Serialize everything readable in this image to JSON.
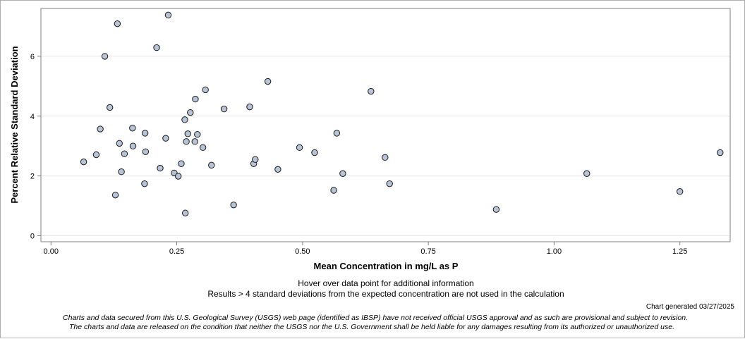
{
  "notes": {
    "hover": "Hover over data point for additional information",
    "calc": "Results > 4 standard deviations from the expected concentration are not used in the calculation",
    "generated": "Chart generated 03/27/2025",
    "disclaimer_1": "Charts and data secured from this U.S. Geological Survey (USGS) web page (identified as IBSP) have not received official USGS approval and as such are provisional and subject to revision.",
    "disclaimer_2": "The charts and data are released on the condition that neither the USGS nor the U.S. Government shall be held liable for any damages resulting from its authorized or unauthorized use."
  },
  "colors": {
    "marker_fill": "#b7c4d6",
    "marker_stroke": "#1a1a1a",
    "grid": "#e6e6e6",
    "axis": "#7f7f7f"
  },
  "chart_data": {
    "type": "scatter",
    "title": "",
    "xlabel": "Mean Concentration in mg/L as P",
    "ylabel": "Percent Relative Standard Deviation",
    "xlim": [
      -0.02,
      1.35
    ],
    "ylim": [
      -0.2,
      7.6
    ],
    "xticks": [
      0.0,
      0.25,
      0.5,
      0.75,
      1.0,
      1.25
    ],
    "xtick_labels": [
      "0.00",
      "0.25",
      "0.50",
      "0.75",
      "1.00",
      "1.25"
    ],
    "yticks": [
      0,
      2,
      4,
      6
    ],
    "ytick_labels": [
      "0",
      "2",
      "4",
      "6"
    ],
    "grid": "horizontal",
    "points": [
      {
        "x": 0.065,
        "y": 2.47
      },
      {
        "x": 0.09,
        "y": 2.71
      },
      {
        "x": 0.098,
        "y": 3.57
      },
      {
        "x": 0.107,
        "y": 6.0
      },
      {
        "x": 0.117,
        "y": 4.29
      },
      {
        "x": 0.128,
        "y": 1.36
      },
      {
        "x": 0.132,
        "y": 7.09
      },
      {
        "x": 0.136,
        "y": 3.09
      },
      {
        "x": 0.14,
        "y": 2.14
      },
      {
        "x": 0.146,
        "y": 2.74
      },
      {
        "x": 0.162,
        "y": 3.6
      },
      {
        "x": 0.163,
        "y": 3.0
      },
      {
        "x": 0.186,
        "y": 1.74
      },
      {
        "x": 0.187,
        "y": 3.43
      },
      {
        "x": 0.188,
        "y": 2.81
      },
      {
        "x": 0.21,
        "y": 6.29
      },
      {
        "x": 0.217,
        "y": 2.26
      },
      {
        "x": 0.228,
        "y": 3.26
      },
      {
        "x": 0.233,
        "y": 7.38
      },
      {
        "x": 0.245,
        "y": 2.1
      },
      {
        "x": 0.253,
        "y": 1.99
      },
      {
        "x": 0.259,
        "y": 2.41
      },
      {
        "x": 0.266,
        "y": 3.88
      },
      {
        "x": 0.267,
        "y": 0.76
      },
      {
        "x": 0.269,
        "y": 3.15
      },
      {
        "x": 0.272,
        "y": 3.41
      },
      {
        "x": 0.277,
        "y": 4.12
      },
      {
        "x": 0.286,
        "y": 3.15
      },
      {
        "x": 0.287,
        "y": 4.57
      },
      {
        "x": 0.291,
        "y": 3.39
      },
      {
        "x": 0.302,
        "y": 2.95
      },
      {
        "x": 0.307,
        "y": 4.88
      },
      {
        "x": 0.319,
        "y": 2.36
      },
      {
        "x": 0.344,
        "y": 4.24
      },
      {
        "x": 0.363,
        "y": 1.03
      },
      {
        "x": 0.395,
        "y": 4.31
      },
      {
        "x": 0.403,
        "y": 2.41
      },
      {
        "x": 0.406,
        "y": 2.55
      },
      {
        "x": 0.431,
        "y": 5.16
      },
      {
        "x": 0.451,
        "y": 2.22
      },
      {
        "x": 0.494,
        "y": 2.95
      },
      {
        "x": 0.524,
        "y": 2.78
      },
      {
        "x": 0.562,
        "y": 1.52
      },
      {
        "x": 0.568,
        "y": 3.43
      },
      {
        "x": 0.58,
        "y": 2.08
      },
      {
        "x": 0.636,
        "y": 4.83
      },
      {
        "x": 0.664,
        "y": 2.62
      },
      {
        "x": 0.673,
        "y": 1.74
      },
      {
        "x": 0.885,
        "y": 0.88
      },
      {
        "x": 1.065,
        "y": 2.08
      },
      {
        "x": 1.25,
        "y": 1.48
      },
      {
        "x": 1.33,
        "y": 2.78
      }
    ]
  }
}
